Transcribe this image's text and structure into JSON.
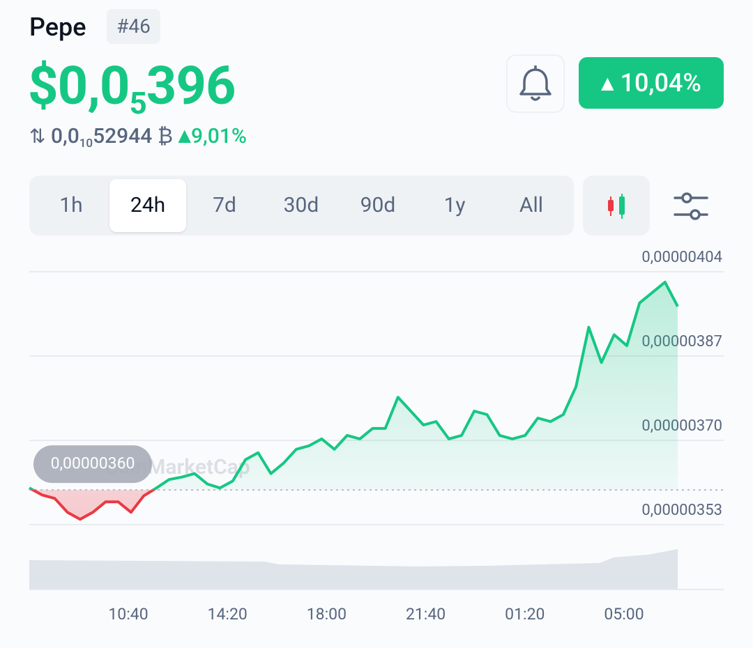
{
  "header": {
    "name": "Pepe",
    "rank": "#46",
    "price": {
      "prefix": "$0,0",
      "zeros": "5",
      "digits": "396"
    },
    "btc_price": {
      "prefix": "0,0",
      "zeros": "10",
      "digits": "52944",
      "unit": "₿"
    },
    "btc_change": "9,01%",
    "change_badge": "10,04%"
  },
  "tabs": {
    "items": [
      "1h",
      "24h",
      "7d",
      "30d",
      "90d",
      "1y",
      "All"
    ],
    "selected": 1
  },
  "chart_data": {
    "type": "line",
    "values": [
      3.604e-06,
      3.59e-06,
      3.583e-06,
      3.555e-06,
      3.541e-06,
      3.555e-06,
      3.576e-06,
      3.576e-06,
      3.555e-06,
      3.588e-06,
      3.604e-06,
      3.621e-06,
      3.626e-06,
      3.633e-06,
      3.612e-06,
      3.604e-06,
      3.618e-06,
      3.661e-06,
      3.675e-06,
      3.633e-06,
      3.654e-06,
      3.682e-06,
      3.689e-06,
      3.703e-06,
      3.682e-06,
      3.71e-06,
      3.703e-06,
      3.724e-06,
      3.724e-06,
      3.787e-06,
      3.759e-06,
      3.731e-06,
      3.738e-06,
      3.703e-06,
      3.71e-06,
      3.759e-06,
      3.752e-06,
      3.71e-06,
      3.703e-06,
      3.71e-06,
      3.745e-06,
      3.738e-06,
      3.752e-06,
      3.808e-06,
      3.928e-06,
      3.857e-06,
      3.913e-06,
      3.891e-06,
      3.977e-06,
      3.998e-06,
      4.019e-06,
      3.97e-06
    ],
    "baseline": {
      "value": 3.6e-06,
      "label": "0,00000360"
    },
    "ylim": [
      3.53e-06,
      4.04e-06
    ],
    "yticks": [
      {
        "value": 4.04e-06,
        "label": "0,00000404"
      },
      {
        "value": 3.87e-06,
        "label": "0,00000387"
      },
      {
        "value": 3.7e-06,
        "label": "0,00000370"
      },
      {
        "value": 3.53e-06,
        "label": "0,00000353"
      }
    ],
    "xtick_labels": [
      "10:40",
      "14:20",
      "18:00",
      "21:40",
      "01:20",
      "05:00"
    ],
    "up_color": "#16c784",
    "down_color": "#ea3943",
    "grid": true,
    "watermark": "CoinMarketCap"
  }
}
